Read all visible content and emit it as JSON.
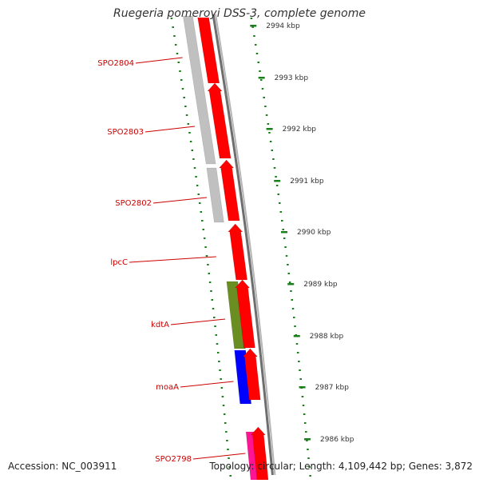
{
  "title": "Ruegeria pomeroyi DSS-3, complete genome",
  "accession": "Accession: NC_003911",
  "topology": "Topology: circular; Length: 4,109,442 bp; Genes: 3,872",
  "colors": {
    "cds": "#ff0000",
    "grey": "#c0c0c0",
    "olive": "#6b8e23",
    "blue": "#0000ff",
    "pink": "#ff1493",
    "label": "#cc0000",
    "tick": "#1a7f1a",
    "backbone": "#808080"
  },
  "ticks": [
    {
      "label": "2994 kbp"
    },
    {
      "label": "2993 kbp"
    },
    {
      "label": "2992 kbp"
    },
    {
      "label": "2991 kbp"
    },
    {
      "label": "2990 kbp"
    },
    {
      "label": "2989 kbp"
    },
    {
      "label": "2988 kbp"
    },
    {
      "label": "2987 kbp"
    },
    {
      "label": "2986 kbp"
    }
  ],
  "genes": [
    {
      "label": "SPO2804"
    },
    {
      "label": "SPO2803"
    },
    {
      "label": "SPO2802"
    },
    {
      "label": "lpcC"
    },
    {
      "label": "kdtA"
    },
    {
      "label": "moaA"
    },
    {
      "label": "SPO2798"
    }
  ]
}
